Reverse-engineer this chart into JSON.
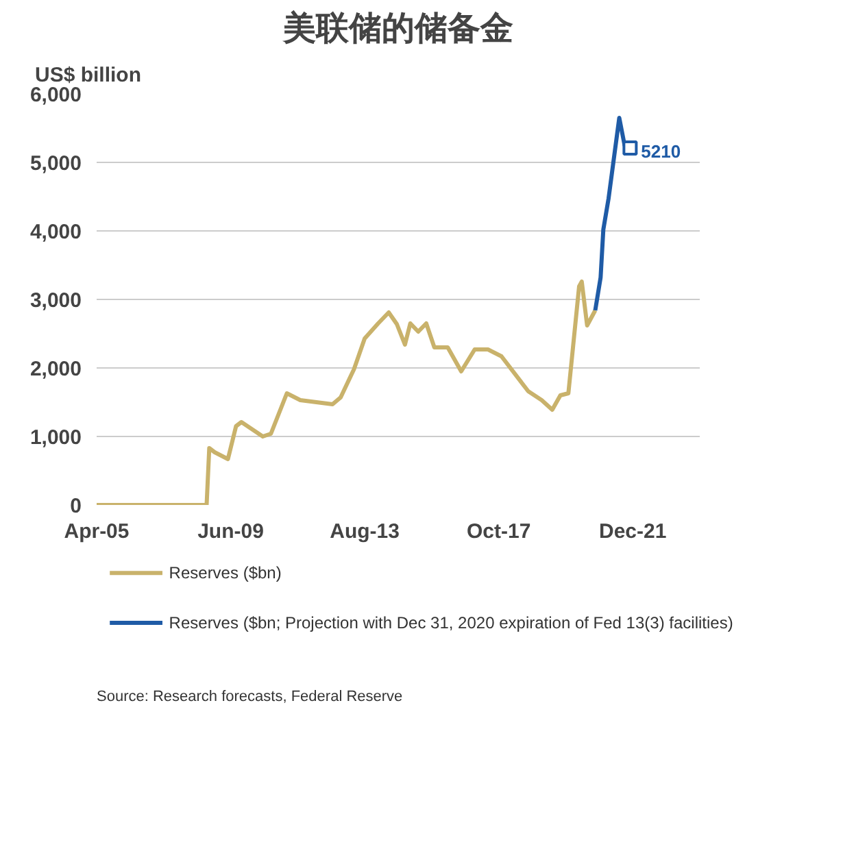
{
  "chart_data": {
    "type": "line",
    "title": "美联储的储备金",
    "ylabel": "US$ billion",
    "annotations": [
      {
        "text": "5210",
        "x": "2021-11",
        "y": 5210
      },
      "Source: Research forecasts, Federal Reserve"
    ],
    "series": [
      {
        "name": "Reserves ($bn)",
        "color": "#c9b26b",
        "x": [
          "2005-04",
          "2008-09",
          "2008-10",
          "2008-12",
          "2009-05",
          "2009-08",
          "2009-10",
          "2010-06",
          "2010-09",
          "2011-03",
          "2011-08",
          "2012-08",
          "2012-11",
          "2013-04",
          "2013-08",
          "2014-01",
          "2014-05",
          "2014-08",
          "2014-11",
          "2015-01",
          "2015-04",
          "2015-07",
          "2015-10",
          "2016-03",
          "2016-08",
          "2017-01",
          "2017-06",
          "2017-11",
          "2018-09",
          "2019-02",
          "2019-06",
          "2019-09",
          "2019-12",
          "2020-04",
          "2020-05",
          "2020-07",
          "2020-10"
        ],
        "values": [
          0,
          0,
          830,
          770,
          670,
          1150,
          1210,
          1000,
          1040,
          1630,
          1530,
          1470,
          1570,
          1980,
          2430,
          2650,
          2810,
          2640,
          2340,
          2650,
          2530,
          2650,
          2300,
          2300,
          1950,
          2270,
          2270,
          2170,
          1660,
          1530,
          1390,
          1600,
          1630,
          3190,
          3260,
          2620,
          2840
        ]
      },
      {
        "name": "Reserves ($bn;  Projection with Dec 31, 2020 expiration of Fed 13(3) facilities)",
        "color": "#1f5ba6",
        "x": [
          "2020-10",
          "2020-12",
          "2021-01",
          "2021-03",
          "2021-07",
          "2021-09"
        ],
        "values": [
          2840,
          3320,
          4020,
          4470,
          5650,
          5240
        ]
      }
    ],
    "xlim": [
      "2005-04",
      "2024-01"
    ],
    "xticks": [
      {
        "value": "2005-04",
        "label": "Apr-05"
      },
      {
        "value": "2009-06",
        "label": "Jun-09"
      },
      {
        "value": "2013-08",
        "label": "Aug-13"
      },
      {
        "value": "2017-10",
        "label": "Oct-17"
      },
      {
        "value": "2021-12",
        "label": "Dec-21"
      }
    ],
    "ylim": [
      0,
      6000
    ],
    "yticks": [
      {
        "value": 0,
        "label": "0"
      },
      {
        "value": 1000,
        "label": "1,000"
      },
      {
        "value": 2000,
        "label": "2,000"
      },
      {
        "value": 3000,
        "label": "3,000"
      },
      {
        "value": 4000,
        "label": "4,000"
      },
      {
        "value": 5000,
        "label": "5,000"
      },
      {
        "value": 6000,
        "label": "6,000"
      }
    ],
    "grid": "y",
    "legend": "bottom",
    "marker": "none",
    "line_style": "solid"
  }
}
